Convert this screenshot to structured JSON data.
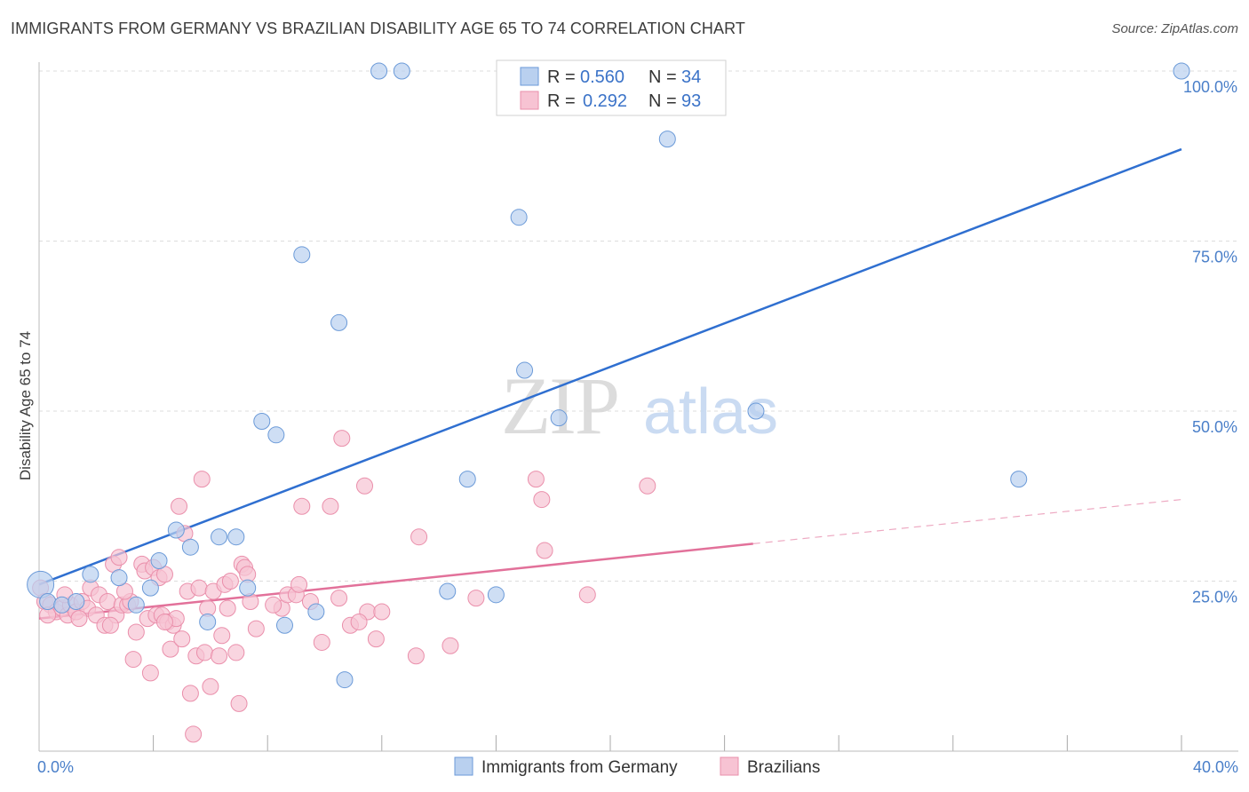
{
  "header": {
    "title": "IMMIGRANTS FROM GERMANY VS BRAZILIAN DISABILITY AGE 65 TO 74 CORRELATION CHART",
    "source": "Source: ZipAtlas.com"
  },
  "watermark": {
    "zip": "ZIP",
    "atlas": "atlas"
  },
  "colors": {
    "blue_fill": "#b9d0ef",
    "blue_stroke": "#6b9ad8",
    "blue_line": "#2f6fd0",
    "pink_fill": "#f7c3d3",
    "pink_stroke": "#ea8fab",
    "pink_line": "#e2719a",
    "grid": "#dddddd",
    "tick_text": "#4a7fc9"
  },
  "legend": {
    "rows": [
      {
        "r_label": "R =",
        "r_value": "0.560",
        "n_label": "N =",
        "n_value": "34"
      },
      {
        "r_label": "R =",
        "r_value": "0.292",
        "n_label": "N =",
        "n_value": "93"
      }
    ]
  },
  "chart_data": {
    "type": "scatter",
    "title": "IMMIGRANTS FROM GERMANY VS BRAZILIAN DISABILITY AGE 65 TO 74 CORRELATION CHART",
    "xlabel": "",
    "ylabel": "Disability Age 65 to 74",
    "xlim": [
      0,
      40
    ],
    "ylim": [
      0,
      103
    ],
    "x_tick_labels": [
      "0.0%",
      "40.0%"
    ],
    "y_ticks": [
      25,
      50,
      75,
      100
    ],
    "y_tick_labels": [
      "25.0%",
      "50.0%",
      "75.0%",
      "100.0%"
    ],
    "grid": true,
    "legend_position": "top-center",
    "series": [
      {
        "name": "Immigrants from Germany",
        "color": "#6b9ad8",
        "r": 0.56,
        "n": 34,
        "trend": {
          "x": [
            0,
            40
          ],
          "y": [
            24.5,
            88.5
          ]
        },
        "points": [
          [
            0.05,
            24.5
          ],
          [
            0.3,
            22
          ],
          [
            0.8,
            21.5
          ],
          [
            1.3,
            22
          ],
          [
            1.8,
            26
          ],
          [
            2.8,
            25.5
          ],
          [
            3.4,
            21.5
          ],
          [
            3.9,
            24
          ],
          [
            4.2,
            28
          ],
          [
            4.8,
            32.5
          ],
          [
            5.3,
            30
          ],
          [
            5.9,
            19
          ],
          [
            6.3,
            31.5
          ],
          [
            6.9,
            31.5
          ],
          [
            7.3,
            24
          ],
          [
            7.8,
            48.5
          ],
          [
            8.3,
            46.5
          ],
          [
            8.6,
            18.5
          ],
          [
            9.2,
            73
          ],
          [
            9.7,
            20.5
          ],
          [
            10.5,
            63
          ],
          [
            10.7,
            10.5
          ],
          [
            11.9,
            100
          ],
          [
            12.7,
            100
          ],
          [
            14.3,
            23.5
          ],
          [
            15.0,
            40
          ],
          [
            16.0,
            23
          ],
          [
            16.8,
            78.5
          ],
          [
            17.0,
            56
          ],
          [
            18.2,
            49
          ],
          [
            22.0,
            90
          ],
          [
            25.1,
            50
          ],
          [
            34.3,
            40
          ],
          [
            40.0,
            100
          ]
        ]
      },
      {
        "name": "Brazilians",
        "color": "#ea8fab",
        "r": 0.292,
        "n": 93,
        "trend": {
          "x": [
            0,
            25
          ],
          "y": [
            19.5,
            30.5
          ]
        },
        "trend_dashed": {
          "x": [
            25,
            40
          ],
          "y": [
            30.5,
            37
          ]
        },
        "points": [
          [
            0.05,
            24
          ],
          [
            0.2,
            22
          ],
          [
            0.4,
            21.5
          ],
          [
            0.6,
            20.5
          ],
          [
            0.8,
            21
          ],
          [
            1.0,
            20
          ],
          [
            1.1,
            21.5
          ],
          [
            1.3,
            20.5
          ],
          [
            1.5,
            22
          ],
          [
            1.7,
            21
          ],
          [
            1.8,
            24
          ],
          [
            2.0,
            20
          ],
          [
            2.1,
            23
          ],
          [
            2.3,
            18.5
          ],
          [
            2.4,
            22
          ],
          [
            2.6,
            27.5
          ],
          [
            2.7,
            20
          ],
          [
            2.8,
            28.5
          ],
          [
            2.9,
            21.5
          ],
          [
            3.1,
            21.5
          ],
          [
            3.2,
            22
          ],
          [
            3.3,
            13.5
          ],
          [
            3.4,
            17.5
          ],
          [
            3.6,
            27.5
          ],
          [
            3.7,
            26.5
          ],
          [
            3.8,
            19.5
          ],
          [
            3.9,
            11.5
          ],
          [
            4.0,
            27
          ],
          [
            4.1,
            20
          ],
          [
            4.2,
            25.5
          ],
          [
            4.3,
            20
          ],
          [
            4.4,
            26
          ],
          [
            4.5,
            19
          ],
          [
            4.6,
            15
          ],
          [
            4.7,
            18.5
          ],
          [
            4.8,
            19.5
          ],
          [
            4.9,
            36
          ],
          [
            5.0,
            16.5
          ],
          [
            5.1,
            32
          ],
          [
            5.2,
            23.5
          ],
          [
            5.3,
            8.5
          ],
          [
            5.4,
            2.5
          ],
          [
            5.5,
            14
          ],
          [
            5.6,
            24
          ],
          [
            5.7,
            40
          ],
          [
            5.8,
            14.5
          ],
          [
            6.0,
            9.5
          ],
          [
            6.1,
            23.5
          ],
          [
            6.3,
            14
          ],
          [
            6.4,
            17
          ],
          [
            6.5,
            24.5
          ],
          [
            6.7,
            25
          ],
          [
            6.9,
            14.5
          ],
          [
            7.0,
            7
          ],
          [
            7.1,
            27.5
          ],
          [
            7.2,
            27
          ],
          [
            7.3,
            26
          ],
          [
            7.4,
            22
          ],
          [
            8.5,
            21
          ],
          [
            8.7,
            23
          ],
          [
            9.0,
            23
          ],
          [
            9.1,
            24.5
          ],
          [
            9.2,
            36
          ],
          [
            9.5,
            22
          ],
          [
            9.9,
            16
          ],
          [
            10.2,
            36
          ],
          [
            10.5,
            22.5
          ],
          [
            10.6,
            46
          ],
          [
            10.9,
            18.5
          ],
          [
            11.4,
            39
          ],
          [
            11.5,
            20.5
          ],
          [
            11.8,
            16.5
          ],
          [
            13.3,
            31.5
          ],
          [
            13.2,
            14
          ],
          [
            14.4,
            15.5
          ],
          [
            15.3,
            22.5
          ],
          [
            17.4,
            40
          ],
          [
            17.6,
            37
          ],
          [
            17.7,
            29.5
          ],
          [
            19.2,
            23
          ],
          [
            21.3,
            39
          ],
          [
            12.0,
            20.5
          ],
          [
            1.4,
            19.5
          ],
          [
            0.9,
            23
          ],
          [
            3.0,
            23.5
          ],
          [
            4.4,
            19
          ],
          [
            6.6,
            21
          ],
          [
            2.5,
            18.5
          ],
          [
            0.3,
            20
          ],
          [
            5.9,
            21
          ],
          [
            8.2,
            21.5
          ],
          [
            7.6,
            18
          ],
          [
            11.2,
            19
          ]
        ]
      }
    ]
  },
  "bottom_legend": {
    "items": [
      {
        "label": "Immigrants from Germany"
      },
      {
        "label": "Brazilians"
      }
    ]
  }
}
